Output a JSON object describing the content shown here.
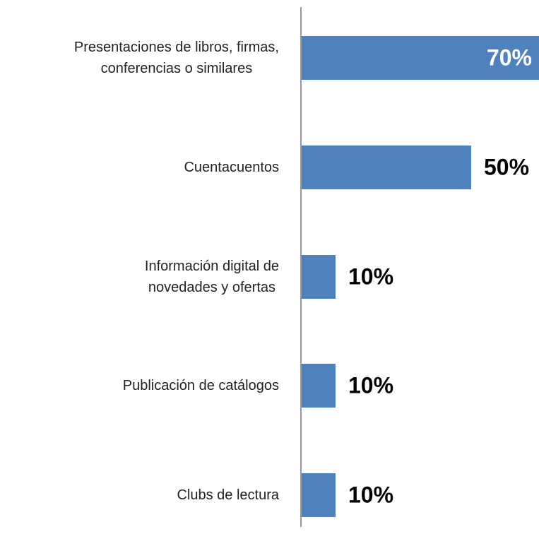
{
  "chart_data": {
    "type": "bar",
    "orientation": "horizontal",
    "color": "#4f81bd",
    "categories": [
      "Presentaciones de libros, firmas,\nconferencias o similares",
      "Cuentacuentos",
      "Información digital de\nnovedades y ofertas",
      "Publicación de catálogos",
      "Clubs de lectura"
    ],
    "values": [
      70,
      50,
      10,
      10,
      10
    ],
    "value_labels": [
      "70%",
      "50%",
      "10%",
      "10%",
      "10%"
    ]
  }
}
